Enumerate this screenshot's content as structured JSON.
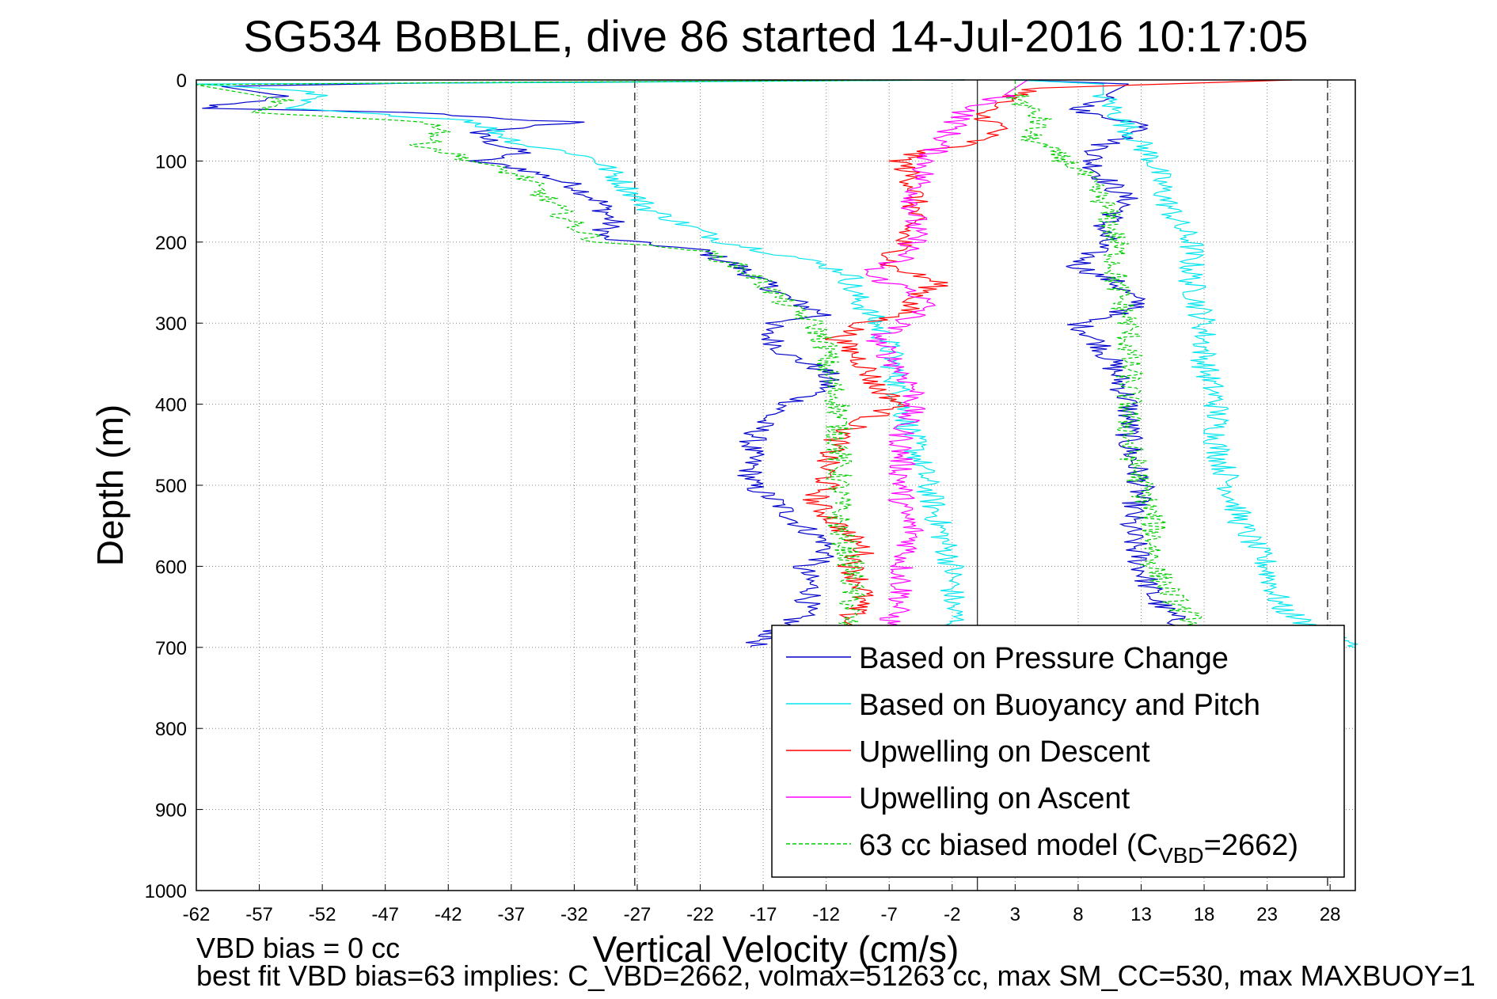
{
  "chart_data": {
    "type": "line",
    "title": "SG534 BoBBLE, dive 86 started 14-Jul-2016 10:17:05",
    "xlabel": "Vertical Velocity (cm/s)",
    "ylabel": "Depth (m)",
    "xlim": [
      -62,
      30
    ],
    "ylim": [
      0,
      1000
    ],
    "y_reversed": true,
    "grid": true,
    "xticks": [
      -62,
      -57,
      -52,
      -47,
      -42,
      -37,
      -32,
      -27,
      -22,
      -17,
      -12,
      -7,
      -2,
      3,
      8,
      13,
      18,
      23,
      28
    ],
    "yticks": [
      0,
      100,
      200,
      300,
      400,
      500,
      600,
      700,
      800,
      900,
      1000
    ],
    "reference_lines": {
      "dashed_x": [
        -27.2,
        27.8
      ],
      "solid_x": [
        0
      ]
    },
    "legend_position": "bottom-right",
    "footnotes": [
      "VBD bias = 0 cc",
      "best fit VBD bias=63 implies: C_VBD=2662, volmax=51263 cc, max SM_CC=530, max MAXBUOY=1"
    ],
    "series": [
      {
        "name": "Based on Pressure Change",
        "color": "#0000cc",
        "line": "solid",
        "segments": [
          [
            [
              -1,
              0
            ],
            [
              -45,
              4
            ],
            [
              -60,
              8
            ],
            [
              -55,
              20
            ],
            [
              -62,
              35
            ],
            [
              -45,
              40
            ],
            [
              -35,
              50
            ],
            [
              -32,
              52
            ],
            [
              -40,
              65
            ],
            [
              -38,
              80
            ],
            [
              -36,
              90
            ],
            [
              -40,
              100
            ],
            [
              -36,
              110
            ],
            [
              -32,
              130
            ],
            [
              -30,
              150
            ],
            [
              -29,
              175
            ],
            [
              -30,
              195
            ],
            [
              -22,
              210
            ],
            [
              -19,
              230
            ],
            [
              -17,
              250
            ],
            [
              -15,
              270
            ],
            [
              -12,
              290
            ],
            [
              -16,
              300
            ],
            [
              -17,
              310
            ],
            [
              -15,
              340
            ],
            [
              -12,
              360
            ],
            [
              -12,
              380
            ],
            [
              -15,
              400
            ],
            [
              -17,
              420
            ],
            [
              -18,
              450
            ],
            [
              -18,
              480
            ],
            [
              -18,
              500
            ],
            [
              -16,
              520
            ],
            [
              -14,
              550
            ],
            [
              -12,
              570
            ],
            [
              -12,
              590
            ],
            [
              -14,
              600
            ],
            [
              -13,
              630
            ],
            [
              -14,
              660
            ],
            [
              -17,
              690
            ],
            [
              -18,
              700
            ]
          ],
          [
            [
              3,
              0
            ],
            [
              12,
              5
            ],
            [
              10,
              20
            ],
            [
              8,
              40
            ],
            [
              12,
              50
            ],
            [
              14,
              60
            ],
            [
              10,
              80
            ],
            [
              9,
              100
            ],
            [
              10,
              120
            ],
            [
              12,
              150
            ],
            [
              10,
              180
            ],
            [
              10,
              200
            ],
            [
              8,
              230
            ],
            [
              11,
              250
            ],
            [
              13,
              280
            ],
            [
              8,
              300
            ],
            [
              10,
              330
            ],
            [
              11,
              360
            ],
            [
              12,
              400
            ],
            [
              12,
              450
            ],
            [
              13,
              500
            ],
            [
              12,
              550
            ],
            [
              13,
              600
            ],
            [
              14,
              640
            ],
            [
              16,
              670
            ],
            [
              20,
              690
            ],
            [
              25,
              700
            ]
          ]
        ]
      },
      {
        "name": "Based on Buoyancy and Pitch",
        "color": "#00e5ee",
        "line": "solid",
        "segments": [
          [
            [
              -1,
              0
            ],
            [
              -30,
              3
            ],
            [
              -62,
              5
            ],
            [
              -52,
              15
            ],
            [
              -55,
              35
            ],
            [
              -40,
              50
            ],
            [
              -38,
              65
            ],
            [
              -36,
              80
            ],
            [
              -32,
              90
            ],
            [
              -30,
              100
            ],
            [
              -28,
              130
            ],
            [
              -26,
              160
            ],
            [
              -23,
              180
            ],
            [
              -20,
              200
            ],
            [
              -14,
              220
            ],
            [
              -10,
              240
            ],
            [
              -10,
              260
            ],
            [
              -9,
              280
            ],
            [
              -8,
              300
            ],
            [
              -7,
              330
            ],
            [
              -6,
              400
            ],
            [
              -5,
              450
            ],
            [
              -4,
              500
            ],
            [
              -3,
              550
            ],
            [
              -2,
              600
            ],
            [
              -2,
              650
            ],
            [
              -1,
              700
            ]
          ],
          [
            [
              3,
              0
            ],
            [
              10,
              5
            ],
            [
              10,
              20
            ],
            [
              12,
              60
            ],
            [
              13,
              80
            ],
            [
              14,
              100
            ],
            [
              15,
              150
            ],
            [
              16,
              180
            ],
            [
              17,
              200
            ],
            [
              17,
              250
            ],
            [
              18,
              300
            ],
            [
              18,
              350
            ],
            [
              19,
              400
            ],
            [
              19,
              450
            ],
            [
              20,
              500
            ],
            [
              21,
              550
            ],
            [
              23,
              600
            ],
            [
              24,
              650
            ],
            [
              27,
              680
            ],
            [
              30,
              700
            ]
          ]
        ]
      },
      {
        "name": "Upwelling on Descent",
        "color": "#ff0000",
        "line": "solid",
        "segments": [
          [
            [
              25,
              0
            ],
            [
              5,
              10
            ],
            [
              3,
              20
            ],
            [
              0,
              40
            ],
            [
              2,
              60
            ],
            [
              -1,
              80
            ],
            [
              -5,
              90
            ],
            [
              -6,
              100
            ],
            [
              -5,
              130
            ],
            [
              -5,
              160
            ],
            [
              -6,
              200
            ],
            [
              -7,
              230
            ],
            [
              -3,
              250
            ],
            [
              -5,
              270
            ],
            [
              -6,
              290
            ],
            [
              -9,
              300
            ],
            [
              -11,
              320
            ],
            [
              -9,
              350
            ],
            [
              -8,
              380
            ],
            [
              -6,
              400
            ],
            [
              -9,
              420
            ],
            [
              -11,
              440
            ],
            [
              -12,
              470
            ],
            [
              -12,
              500
            ],
            [
              -13,
              520
            ],
            [
              -11,
              550
            ],
            [
              -9,
              580
            ],
            [
              -10,
              600
            ],
            [
              -9,
              630
            ],
            [
              -10,
              660
            ],
            [
              -11,
              690
            ],
            [
              -12,
              700
            ]
          ]
        ]
      },
      {
        "name": "Upwelling on Ascent",
        "color": "#ff00ff",
        "line": "solid",
        "segments": [
          [
            [
              4,
              0
            ],
            [
              2,
              20
            ],
            [
              -1,
              40
            ],
            [
              -2,
              60
            ],
            [
              -3,
              80
            ],
            [
              -4,
              100
            ],
            [
              -5,
              150
            ],
            [
              -5,
              200
            ],
            [
              -6,
              220
            ],
            [
              -8,
              230
            ],
            [
              -9,
              240
            ],
            [
              -7,
              250
            ],
            [
              -5,
              260
            ],
            [
              -4,
              280
            ],
            [
              -6,
              300
            ],
            [
              -8,
              320
            ],
            [
              -7,
              340
            ],
            [
              -6,
              360
            ],
            [
              -5,
              380
            ],
            [
              -5,
              400
            ],
            [
              -6,
              430
            ],
            [
              -6,
              460
            ],
            [
              -6,
              500
            ],
            [
              -6,
              530
            ],
            [
              -5,
              560
            ],
            [
              -6,
              600
            ],
            [
              -6,
              640
            ],
            [
              -7,
              670
            ],
            [
              -8,
              690
            ],
            [
              -9,
              700
            ]
          ]
        ]
      },
      {
        "name": "63 cc biased model (CVBD=2662)",
        "color": "#00cc00",
        "line": "dashed",
        "segments": [
          [
            [
              -1,
              0
            ],
            [
              -40,
              3
            ],
            [
              -62,
              6
            ],
            [
              -55,
              25
            ],
            [
              -58,
              40
            ],
            [
              -45,
              50
            ],
            [
              -42,
              60
            ],
            [
              -44,
              80
            ],
            [
              -40,
              100
            ],
            [
              -36,
              120
            ],
            [
              -34,
              150
            ],
            [
              -32,
              180
            ],
            [
              -30,
              200
            ],
            [
              -22,
              210
            ],
            [
              -19,
              230
            ],
            [
              -17,
              250
            ],
            [
              -15,
              280
            ],
            [
              -13,
              300
            ],
            [
              -12,
              330
            ],
            [
              -12,
              360
            ],
            [
              -11,
              400
            ],
            [
              -11,
              450
            ],
            [
              -11,
              500
            ],
            [
              -11,
              550
            ],
            [
              -10,
              600
            ],
            [
              -10,
              650
            ],
            [
              -11,
              700
            ]
          ],
          [
            [
              3,
              0
            ],
            [
              3,
              20
            ],
            [
              5,
              50
            ],
            [
              4,
              70
            ],
            [
              6,
              90
            ],
            [
              8,
              110
            ],
            [
              10,
              150
            ],
            [
              11,
              200
            ],
            [
              11,
              250
            ],
            [
              12,
              300
            ],
            [
              12,
              400
            ],
            [
              12,
              450
            ],
            [
              13,
              500
            ],
            [
              14,
              550
            ],
            [
              14,
              600
            ],
            [
              16,
              650
            ],
            [
              18,
              680
            ],
            [
              20,
              700
            ]
          ]
        ]
      }
    ],
    "legend_label_main": "63 cc biased model (C",
    "legend_label_sub": "VBD",
    "legend_label_tail": "=2662)"
  }
}
